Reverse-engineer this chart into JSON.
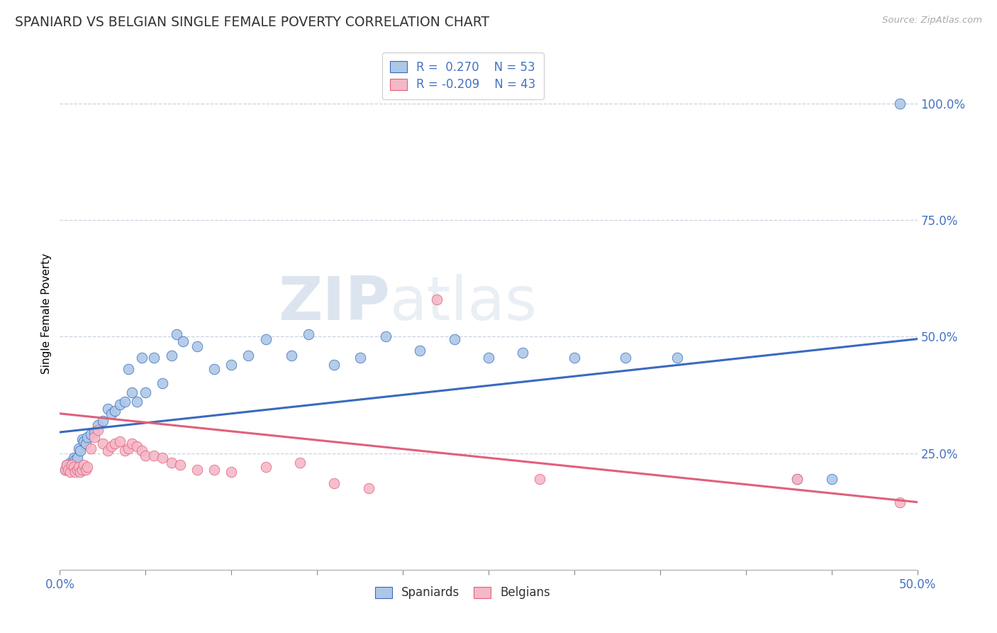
{
  "title": "SPANIARD VS BELGIAN SINGLE FEMALE POVERTY CORRELATION CHART",
  "source_text": "Source: ZipAtlas.com",
  "ylabel": "Single Female Poverty",
  "xlim": [
    0.0,
    0.5
  ],
  "ylim": [
    0.0,
    1.1
  ],
  "ytick_values": [
    0.25,
    0.5,
    0.75,
    1.0
  ],
  "legend_r_spaniard": "R =  0.270",
  "legend_n_spaniard": "N = 53",
  "legend_r_belgian": "R = -0.209",
  "legend_n_belgian": "N = 43",
  "spaniard_color": "#adc8e6",
  "belgian_color": "#f5b8c8",
  "line_spaniard_color": "#3a6abf",
  "line_belgian_color": "#e0607a",
  "watermark_zip": "ZIP",
  "watermark_atlas": "atlas",
  "background_color": "#ffffff",
  "grid_color": "#c8d4e0",
  "spaniard_scatter": [
    [
      0.003,
      0.215
    ],
    [
      0.004,
      0.225
    ],
    [
      0.005,
      0.22
    ],
    [
      0.006,
      0.23
    ],
    [
      0.007,
      0.22
    ],
    [
      0.008,
      0.24
    ],
    [
      0.009,
      0.235
    ],
    [
      0.01,
      0.24
    ],
    [
      0.011,
      0.26
    ],
    [
      0.012,
      0.255
    ],
    [
      0.013,
      0.28
    ],
    [
      0.014,
      0.275
    ],
    [
      0.015,
      0.27
    ],
    [
      0.016,
      0.285
    ],
    [
      0.018,
      0.29
    ],
    [
      0.02,
      0.295
    ],
    [
      0.022,
      0.31
    ],
    [
      0.025,
      0.32
    ],
    [
      0.028,
      0.345
    ],
    [
      0.03,
      0.335
    ],
    [
      0.032,
      0.34
    ],
    [
      0.035,
      0.355
    ],
    [
      0.038,
      0.36
    ],
    [
      0.04,
      0.43
    ],
    [
      0.042,
      0.38
    ],
    [
      0.045,
      0.36
    ],
    [
      0.048,
      0.455
    ],
    [
      0.05,
      0.38
    ],
    [
      0.055,
      0.455
    ],
    [
      0.06,
      0.4
    ],
    [
      0.065,
      0.46
    ],
    [
      0.068,
      0.505
    ],
    [
      0.072,
      0.49
    ],
    [
      0.08,
      0.48
    ],
    [
      0.09,
      0.43
    ],
    [
      0.1,
      0.44
    ],
    [
      0.11,
      0.46
    ],
    [
      0.12,
      0.495
    ],
    [
      0.135,
      0.46
    ],
    [
      0.145,
      0.505
    ],
    [
      0.16,
      0.44
    ],
    [
      0.175,
      0.455
    ],
    [
      0.19,
      0.5
    ],
    [
      0.21,
      0.47
    ],
    [
      0.23,
      0.495
    ],
    [
      0.25,
      0.455
    ],
    [
      0.27,
      0.465
    ],
    [
      0.3,
      0.455
    ],
    [
      0.33,
      0.455
    ],
    [
      0.36,
      0.455
    ],
    [
      0.43,
      0.195
    ],
    [
      0.45,
      0.195
    ],
    [
      0.49,
      1.0
    ]
  ],
  "belgian_scatter": [
    [
      0.003,
      0.215
    ],
    [
      0.004,
      0.225
    ],
    [
      0.005,
      0.215
    ],
    [
      0.006,
      0.21
    ],
    [
      0.007,
      0.225
    ],
    [
      0.008,
      0.22
    ],
    [
      0.009,
      0.21
    ],
    [
      0.01,
      0.215
    ],
    [
      0.011,
      0.22
    ],
    [
      0.012,
      0.21
    ],
    [
      0.013,
      0.215
    ],
    [
      0.014,
      0.225
    ],
    [
      0.015,
      0.215
    ],
    [
      0.016,
      0.22
    ],
    [
      0.018,
      0.26
    ],
    [
      0.02,
      0.285
    ],
    [
      0.022,
      0.3
    ],
    [
      0.025,
      0.27
    ],
    [
      0.028,
      0.255
    ],
    [
      0.03,
      0.265
    ],
    [
      0.032,
      0.27
    ],
    [
      0.035,
      0.275
    ],
    [
      0.038,
      0.255
    ],
    [
      0.04,
      0.26
    ],
    [
      0.042,
      0.27
    ],
    [
      0.045,
      0.265
    ],
    [
      0.048,
      0.255
    ],
    [
      0.05,
      0.245
    ],
    [
      0.055,
      0.245
    ],
    [
      0.06,
      0.24
    ],
    [
      0.065,
      0.23
    ],
    [
      0.07,
      0.225
    ],
    [
      0.08,
      0.215
    ],
    [
      0.09,
      0.215
    ],
    [
      0.1,
      0.21
    ],
    [
      0.12,
      0.22
    ],
    [
      0.14,
      0.23
    ],
    [
      0.16,
      0.185
    ],
    [
      0.18,
      0.175
    ],
    [
      0.22,
      0.58
    ],
    [
      0.28,
      0.195
    ],
    [
      0.43,
      0.195
    ],
    [
      0.49,
      0.145
    ]
  ],
  "spaniard_line": [
    [
      0.0,
      0.295
    ],
    [
      0.5,
      0.495
    ]
  ],
  "belgian_line": [
    [
      0.0,
      0.335
    ],
    [
      0.5,
      0.145
    ]
  ]
}
